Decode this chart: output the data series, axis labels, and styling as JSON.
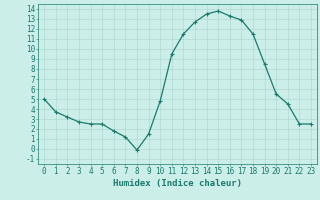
{
  "x": [
    0,
    1,
    2,
    3,
    4,
    5,
    6,
    7,
    8,
    9,
    10,
    11,
    12,
    13,
    14,
    15,
    16,
    17,
    18,
    19,
    20,
    21,
    22,
    23
  ],
  "y": [
    5.0,
    3.7,
    3.2,
    2.7,
    2.5,
    2.5,
    1.8,
    1.2,
    -0.1,
    1.5,
    4.8,
    9.5,
    11.5,
    12.7,
    13.5,
    13.8,
    13.3,
    12.9,
    11.5,
    8.5,
    5.5,
    4.5,
    2.5,
    2.5
  ],
  "line_color": "#1a7a6e",
  "marker": "+",
  "marker_size": 3,
  "linewidth": 0.9,
  "xlabel": "Humidex (Indice chaleur)",
  "xlabel_fontsize": 6.5,
  "xlabel_color": "#1a7a6e",
  "background_color": "#cceee8",
  "grid_color": "#aad4ce",
  "axis_color": "#1a7a6e",
  "tick_color": "#1a7a6e",
  "tick_fontsize": 5.5,
  "xlim": [
    -0.5,
    23.5
  ],
  "ylim": [
    -1.5,
    14.5
  ],
  "yticks": [
    -1,
    0,
    1,
    2,
    3,
    4,
    5,
    6,
    7,
    8,
    9,
    10,
    11,
    12,
    13,
    14
  ],
  "xticks": [
    0,
    1,
    2,
    3,
    4,
    5,
    6,
    7,
    8,
    9,
    10,
    11,
    12,
    13,
    14,
    15,
    16,
    17,
    18,
    19,
    20,
    21,
    22,
    23
  ]
}
